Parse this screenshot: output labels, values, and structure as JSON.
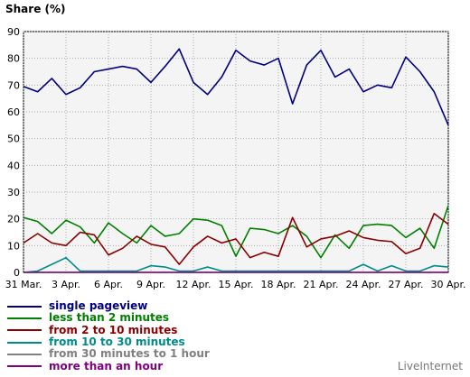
{
  "chart_data": {
    "type": "line",
    "title": "Share (%)",
    "xlabel": "",
    "ylabel": "",
    "ylim": [
      0,
      90
    ],
    "yticks": [
      0,
      10,
      20,
      30,
      40,
      50,
      60,
      70,
      80,
      90
    ],
    "grid": true,
    "legend_position": "bottom",
    "x": [
      "31 Mar.",
      "1 Apr.",
      "2 Apr.",
      "3 Apr.",
      "4 Apr.",
      "5 Apr.",
      "6 Apr.",
      "7 Apr.",
      "8 Apr.",
      "9 Apr.",
      "10 Apr.",
      "11 Apr.",
      "12 Apr.",
      "13 Apr.",
      "14 Apr.",
      "15 Apr.",
      "16 Apr.",
      "17 Apr.",
      "18 Apr.",
      "19 Apr.",
      "20 Apr.",
      "21 Apr.",
      "22 Apr.",
      "23 Apr.",
      "24 Apr.",
      "25 Apr.",
      "26 Apr.",
      "27 Apr.",
      "28 Apr.",
      "29 Apr.",
      "30 Apr."
    ],
    "xticks": [
      "31 Mar.",
      "3 Apr.",
      "6 Apr.",
      "9 Apr.",
      "12 Apr.",
      "15 Apr.",
      "18 Apr.",
      "21 Apr.",
      "24 Apr.",
      "27 Apr.",
      "30 Apr."
    ],
    "series": [
      {
        "name": "single pageview",
        "color": "#000080",
        "values": [
          69.5,
          67.5,
          72.5,
          66.5,
          69,
          75,
          76,
          77,
          76,
          71,
          77,
          83.5,
          71,
          66.5,
          73,
          83,
          79,
          77.5,
          80,
          63,
          77.5,
          83,
          73,
          76,
          67.5,
          70,
          69,
          80.5,
          75,
          67.5,
          55
        ]
      },
      {
        "name": "less than 2 minutes",
        "color": "#008000",
        "values": [
          20.5,
          19,
          14.5,
          19.5,
          17,
          11,
          18.5,
          14.5,
          11,
          17.5,
          13.5,
          14.5,
          20,
          19.5,
          17.5,
          6,
          16.5,
          16,
          14.5,
          17.5,
          13.5,
          5.5,
          14,
          9,
          17.5,
          18,
          17.5,
          13,
          16.5,
          9,
          25
        ]
      },
      {
        "name": "from 2 to 10 minutes",
        "color": "#8b0000",
        "values": [
          11,
          14.5,
          11,
          10,
          15,
          14,
          6.5,
          9,
          13.5,
          10.5,
          9.5,
          3,
          9.5,
          13.5,
          11,
          12.5,
          5.5,
          7.5,
          6,
          20.5,
          9.5,
          12.5,
          13.5,
          15.5,
          13,
          12,
          11.5,
          7,
          9,
          22,
          18
        ]
      },
      {
        "name": "from 10 to 30 minutes",
        "color": "#008b8b",
        "values": [
          0,
          0.5,
          3,
          5.5,
          0.5,
          0.5,
          0.5,
          0.5,
          0.5,
          2.5,
          2,
          0.5,
          0.5,
          2,
          0.5,
          0.5,
          0.5,
          0.5,
          0.5,
          0.5,
          0.5,
          0.5,
          0.5,
          0.5,
          3,
          0.5,
          2.5,
          0.5,
          0.5,
          2.5,
          2
        ]
      },
      {
        "name": "from 30 minutes to 1 hour",
        "color": "#808080",
        "values": [
          0,
          0,
          0,
          0,
          0,
          0,
          0,
          0,
          0,
          0,
          0,
          0,
          0,
          0,
          0,
          0,
          0,
          0,
          0,
          0,
          0,
          0,
          0,
          0,
          0,
          0,
          0,
          0,
          0,
          0,
          0
        ]
      },
      {
        "name": "more than an hour",
        "color": "#800080",
        "values": [
          0,
          0,
          0,
          0,
          0,
          0,
          0,
          0,
          0,
          0,
          0,
          0,
          0,
          0,
          0,
          0,
          0,
          0,
          0,
          0,
          0,
          0,
          0,
          0,
          0,
          0,
          0,
          0,
          0,
          0,
          0
        ]
      }
    ]
  },
  "brand": "LiveInternet"
}
